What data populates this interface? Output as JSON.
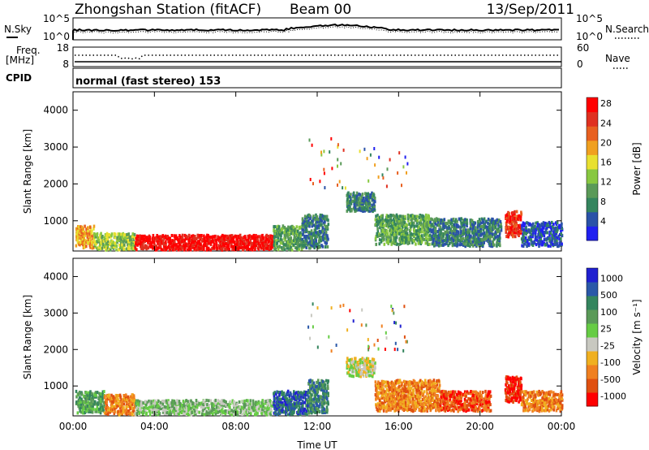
{
  "header": {
    "station": "Zhongshan Station (fitACF)",
    "beam": "Beam 00",
    "date": "13/Sep/2011"
  },
  "noise_panel": {
    "left_label": "N.Sky",
    "right_label": "N.Search",
    "left_ticks": [
      "10^5",
      "10^0"
    ],
    "right_ticks": [
      "10^5",
      "10^0"
    ]
  },
  "freq_panel": {
    "left_label_1": "Freq.",
    "left_label_2": "[MHz]",
    "right_label": "Nave",
    "left_ticks": [
      "18",
      "8"
    ],
    "right_ticks": [
      "60",
      "0"
    ]
  },
  "cpid": {
    "label": "CPID",
    "text": "normal (fast stereo) 153"
  },
  "chart_data": [
    {
      "type": "heatmap",
      "title": "",
      "xlabel": "",
      "ylabel": "Slant Range [km]",
      "x_ticks": [
        "00:00",
        "04:00",
        "08:00",
        "12:00",
        "16:00",
        "20:00",
        "00:00"
      ],
      "y_ticks": [
        1000,
        2000,
        3000,
        4000
      ],
      "xlim_hours": [
        0,
        24
      ],
      "ylim_km": [
        180,
        4500
      ],
      "colorbar": {
        "label": "Power [dB]",
        "ticks": [
          "4",
          "8",
          "12",
          "16",
          "20",
          "24",
          "28"
        ],
        "colors": [
          "#2020f0",
          "#2a52a8",
          "#34855e",
          "#5a9a58",
          "#88c840",
          "#e8e030",
          "#f0a020",
          "#e86020",
          "#e03020",
          "#ff0000"
        ]
      },
      "regions": [
        {
          "t0": 0.1,
          "t1": 1.0,
          "r0": 300,
          "r1": 900,
          "level": 6
        },
        {
          "t0": 1.0,
          "t1": 3.0,
          "r0": 250,
          "r1": 700,
          "level": 4
        },
        {
          "t0": 3.0,
          "t1": 9.8,
          "r0": 250,
          "r1": 650,
          "level": 9
        },
        {
          "t0": 9.8,
          "t1": 11.2,
          "r0": 250,
          "r1": 900,
          "level": 3
        },
        {
          "t0": 11.2,
          "t1": 12.5,
          "r0": 300,
          "r1": 1200,
          "level": 2
        },
        {
          "t0": 13.4,
          "t1": 14.8,
          "r0": 1300,
          "r1": 1800,
          "level": 2
        },
        {
          "t0": 14.8,
          "t1": 17.5,
          "r0": 400,
          "r1": 1200,
          "level": 3
        },
        {
          "t0": 17.5,
          "t1": 21.0,
          "r0": 350,
          "r1": 1100,
          "level": 2
        },
        {
          "t0": 21.2,
          "t1": 22.0,
          "r0": 600,
          "r1": 1300,
          "level": 8
        },
        {
          "t0": 22.0,
          "t1": 24.0,
          "r0": 350,
          "r1": 1000,
          "level": 1
        }
      ]
    },
    {
      "type": "heatmap",
      "title": "",
      "xlabel": "Time UT",
      "ylabel": "Slant Range [km]",
      "x_ticks": [
        "00:00",
        "04:00",
        "08:00",
        "12:00",
        "16:00",
        "20:00",
        "00:00"
      ],
      "y_ticks": [
        1000,
        2000,
        3000,
        4000
      ],
      "xlim_hours": [
        0,
        24
      ],
      "ylim_km": [
        180,
        4500
      ],
      "colorbar": {
        "label": "Velocity [m s⁻¹]",
        "ticks": [
          "1000",
          "500",
          "100",
          "25",
          "-25",
          "-100",
          "-500",
          "-1000"
        ],
        "colors": [
          "#2020d0",
          "#2a58a8",
          "#34855e",
          "#5a9a58",
          "#66cc44",
          "#c8c8c0",
          "#f0b020",
          "#f08020",
          "#e05010",
          "#ff0000"
        ]
      },
      "regions": [
        {
          "t0": 0.1,
          "t1": 1.5,
          "r0": 300,
          "r1": 900,
          "level": 3
        },
        {
          "t0": 1.5,
          "t1": 3.0,
          "r0": 250,
          "r1": 800,
          "level": 7
        },
        {
          "t0": 3.0,
          "t1": 9.8,
          "r0": 250,
          "r1": 650,
          "level": 4
        },
        {
          "t0": 9.8,
          "t1": 11.5,
          "r0": 250,
          "r1": 900,
          "level": 1
        },
        {
          "t0": 11.5,
          "t1": 12.5,
          "r0": 300,
          "r1": 1200,
          "level": 2
        },
        {
          "t0": 13.4,
          "t1": 14.8,
          "r0": 1300,
          "r1": 1800,
          "level": 5
        },
        {
          "t0": 14.8,
          "t1": 18.0,
          "r0": 350,
          "r1": 1200,
          "level": 7
        },
        {
          "t0": 18.0,
          "t1": 20.5,
          "r0": 350,
          "r1": 900,
          "level": 8
        },
        {
          "t0": 21.2,
          "t1": 22.0,
          "r0": 600,
          "r1": 1300,
          "level": 9
        },
        {
          "t0": 22.0,
          "t1": 24.0,
          "r0": 350,
          "r1": 900,
          "level": 7
        }
      ]
    }
  ]
}
